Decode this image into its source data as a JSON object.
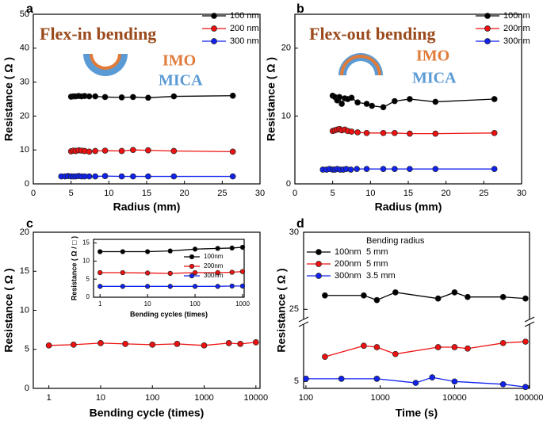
{
  "chart_data": [
    {
      "type": "line",
      "panel": "a",
      "title": "Flex-in bending",
      "annotations": [
        "IMO",
        "MICA"
      ],
      "xlabel": "Radius (mm)",
      "ylabel": "Resistance ( Ω )",
      "xlim": [
        0,
        30
      ],
      "xticks": [
        0,
        5,
        10,
        15,
        20,
        25,
        30
      ],
      "ylim": [
        0,
        50
      ],
      "yticks": [
        0,
        10,
        20,
        30,
        40,
        50
      ],
      "legend": "upper right",
      "series": [
        {
          "name": "100 nm",
          "color": "#000000",
          "x": [
            5,
            5.3,
            5.6,
            6,
            6.4,
            6.8,
            7.4,
            8.2,
            9.5,
            11.7,
            13.2,
            15.2,
            18.6,
            26.4
          ],
          "values": [
            25.7,
            25.8,
            25.8,
            25.9,
            25.8,
            25.9,
            25.8,
            25.8,
            25.6,
            25.5,
            25.6,
            25.4,
            25.8,
            26.0
          ]
        },
        {
          "name": "200 nm",
          "color": "#ee1111",
          "x": [
            5,
            5.3,
            5.6,
            6,
            6.4,
            6.8,
            7.4,
            8.2,
            9.5,
            11.7,
            13.2,
            15.2,
            18.6,
            26.4
          ],
          "values": [
            9.6,
            9.8,
            9.7,
            9.9,
            9.8,
            9.7,
            9.5,
            9.7,
            9.8,
            9.7,
            10.0,
            9.9,
            9.7,
            9.5
          ]
        },
        {
          "name": "300 nm",
          "color": "#1122ee",
          "x": [
            3.7,
            4.2,
            4.6,
            5,
            5.3,
            5.6,
            6,
            6.4,
            6.8,
            7.4,
            8.2,
            9.5,
            11.7,
            13.2,
            15.2,
            18.6,
            26.4
          ],
          "values": [
            2.2,
            2.2,
            2.3,
            2.2,
            2.2,
            2.2,
            2.3,
            2.2,
            2.2,
            2.2,
            2.2,
            2.3,
            2.2,
            2.2,
            2.2,
            2.2,
            2.2
          ]
        }
      ]
    },
    {
      "type": "line",
      "panel": "b",
      "title": "Flex-out bending",
      "annotations": [
        "IMO",
        "MICA"
      ],
      "xlabel": "Radius (mm)",
      "ylabel": "Resistance ( Ω )",
      "xlim": [
        0,
        30
      ],
      "xticks": [
        0,
        5,
        10,
        15,
        20,
        25,
        30
      ],
      "ylim": [
        0,
        25
      ],
      "yticks": [
        0,
        10,
        20
      ],
      "legend": "upper right",
      "series": [
        {
          "name": "100nm",
          "color": "#000000",
          "x": [
            5,
            5.3,
            5.6,
            5.9,
            6.2,
            6.6,
            7,
            7.5,
            8.3,
            9.5,
            10.2,
            11.7,
            13.2,
            15.2,
            18.6,
            26.4
          ],
          "values": [
            13,
            12.8,
            12.3,
            12.8,
            11.8,
            12.6,
            12.5,
            12.7,
            12,
            11.8,
            11.5,
            11.3,
            12.2,
            12.5,
            12.1,
            12.5
          ]
        },
        {
          "name": "200nm",
          "color": "#ee1111",
          "x": [
            5,
            5.3,
            5.6,
            5.9,
            6.2,
            6.6,
            7,
            7.5,
            8.3,
            9.5,
            11.7,
            13.2,
            15.2,
            18.6,
            26.4
          ],
          "values": [
            7.8,
            7.9,
            8.0,
            8.1,
            7.9,
            8.0,
            7.8,
            7.7,
            7.6,
            7.5,
            7.5,
            7.5,
            7.4,
            7.4,
            7.5
          ]
        },
        {
          "name": "300nm",
          "color": "#1122ee",
          "x": [
            3.7,
            4.2,
            4.6,
            5,
            5.3,
            5.6,
            6,
            6.4,
            6.8,
            7.4,
            8.2,
            9.5,
            11.7,
            13.2,
            15.2,
            18.6,
            26.4
          ],
          "values": [
            2.1,
            2.1,
            2.2,
            2.1,
            2.1,
            2.2,
            2.1,
            2.1,
            2.2,
            2.1,
            2.2,
            2.2,
            2.2,
            2.2,
            2.2,
            2.2,
            2.2
          ]
        }
      ]
    },
    {
      "type": "line",
      "panel": "c",
      "xlabel": "Bending cycle (times)",
      "ylabel": "Resistance ( Ω )",
      "xscale": "log",
      "xlim": [
        0.5,
        12000
      ],
      "xticks": [
        1,
        10,
        100,
        1000,
        10000
      ],
      "ylim": [
        0,
        20
      ],
      "yticks": [
        0,
        5,
        10,
        15,
        20
      ],
      "series": [
        {
          "color": "#ee1111",
          "x": [
            1,
            3,
            10,
            30,
            100,
            300,
            1000,
            3000,
            5000,
            10000
          ],
          "values": [
            5.5,
            5.6,
            5.8,
            5.7,
            5.6,
            5.7,
            5.5,
            5.8,
            5.7,
            5.9
          ]
        }
      ],
      "inset": {
        "type": "line",
        "xlabel": "Bending cycles (times)",
        "ylabel": "Resistance ( Ω / □ )",
        "xscale": "log",
        "xlim": [
          0.73,
          1080
        ],
        "xticks": [
          1,
          10,
          100,
          1000
        ],
        "ylim": [
          0,
          16
        ],
        "yticks": [
          0,
          5,
          10,
          15
        ],
        "legend": "right",
        "series": [
          {
            "name": "100nm",
            "color": "#000000",
            "x": [
              1,
              3,
              10,
              30,
              100,
              300,
              600,
              1000
            ],
            "values": [
              12.6,
              12.6,
              12.6,
              12.8,
              13.3,
              13.5,
              13.6,
              13.8
            ]
          },
          {
            "name": "200nm",
            "color": "#ee1111",
            "x": [
              1,
              3,
              10,
              30,
              100,
              300,
              600,
              1000
            ],
            "values": [
              6.8,
              6.8,
              6.7,
              6.6,
              6.8,
              6.8,
              6.9,
              7.1
            ]
          },
          {
            "name": "300nm",
            "color": "#1122ee",
            "x": [
              1,
              3,
              10,
              30,
              100,
              300,
              600,
              1000
            ],
            "values": [
              3.0,
              3.0,
              3.0,
              3.0,
              3.0,
              3.0,
              3.1,
              3.1
            ]
          }
        ]
      }
    },
    {
      "type": "line",
      "panel": "d",
      "xlabel": "Time (s)",
      "ylabel": "Resistance ( Ω )",
      "xscale": "log",
      "xlim": [
        93,
        102000
      ],
      "xticks": [
        100,
        1000,
        10000,
        100000
      ],
      "y_segments": [
        {
          "ylim": [
            4.5,
            9
          ],
          "yticks": [
            5
          ]
        },
        {
          "ylim": [
            24.5,
            30
          ],
          "yticks": [
            25,
            30
          ]
        }
      ],
      "legend": "upper left",
      "legend_title": "Bending radius",
      "series": [
        {
          "name": "100nm",
          "radius": "5 mm",
          "color": "#000000",
          "x": [
            180,
            600,
            900,
            1600,
            6000,
            10000,
            15000,
            45000,
            90000
          ],
          "values": [
            25.9,
            25.9,
            25.6,
            26.1,
            25.7,
            26.1,
            25.8,
            25.8,
            25.7
          ]
        },
        {
          "name": "200nm",
          "radius": "5 mm",
          "color": "#ee1111",
          "x": [
            180,
            600,
            900,
            1600,
            6000,
            10000,
            15000,
            45000,
            90000
          ],
          "values": [
            6.8,
            7.6,
            7.5,
            7.0,
            7.5,
            7.5,
            7.4,
            7.8,
            7.9
          ]
        },
        {
          "name": "300nm",
          "radius": "3.5 mm",
          "color": "#1122ee",
          "x": [
            100,
            300,
            900,
            3000,
            5000,
            10000,
            45000,
            90000
          ],
          "values": [
            5.2,
            5.2,
            5.2,
            4.9,
            5.3,
            5.0,
            4.8,
            4.6
          ]
        }
      ]
    }
  ]
}
